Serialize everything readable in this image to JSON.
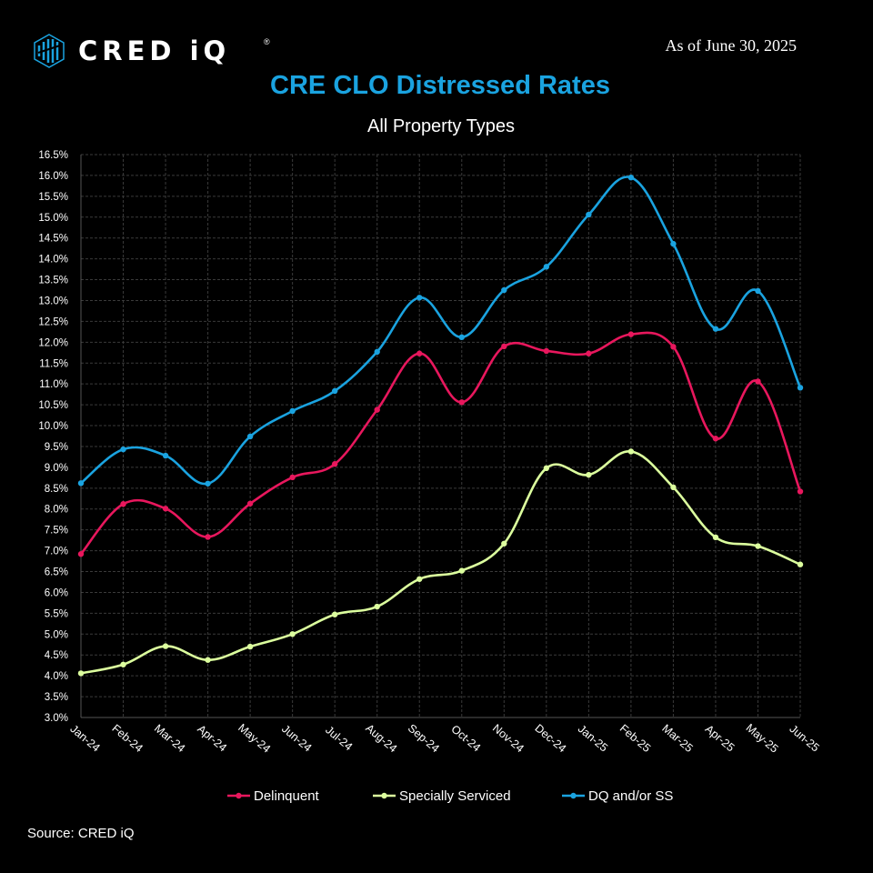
{
  "header": {
    "logo_text": "CRED iQ",
    "logo_registered": "®",
    "as_of": "As of June 30, 2025"
  },
  "footer": {
    "source": "Source:  CRED iQ"
  },
  "colors": {
    "background": "#000000",
    "title": "#1aa3e0",
    "grid": "#3a3a3a"
  },
  "chart_data": {
    "type": "line",
    "title": "CRE CLO Distressed Rates",
    "subtitle": "All Property Types",
    "xlabel": "",
    "ylabel": "",
    "ylim": [
      3.0,
      16.5
    ],
    "y_step": 0.5,
    "y_format": "percent_1dp",
    "grid": true,
    "legend_position": "bottom",
    "categories": [
      "Jan-24",
      "Feb-24",
      "Mar-24",
      "Apr-24",
      "May-24",
      "Jun-24",
      "Jul-24",
      "Aug-24",
      "Sep-24",
      "Oct-24",
      "Nov-24",
      "Dec-24",
      "Jan-25",
      "Feb-25",
      "Mar-25",
      "Apr-25",
      "May-25",
      "Jun-25"
    ],
    "series": [
      {
        "name": "Delinquent",
        "color": "#e8175d",
        "values": [
          6.92,
          8.12,
          8.01,
          7.33,
          8.13,
          8.76,
          9.08,
          10.38,
          11.73,
          10.56,
          11.9,
          11.79,
          11.73,
          12.19,
          11.89,
          9.69,
          11.06,
          8.42
        ]
      },
      {
        "name": "Specially Serviced",
        "color": "#dcff9e",
        "values": [
          4.06,
          4.27,
          4.71,
          4.38,
          4.7,
          5.0,
          5.47,
          5.66,
          6.32,
          6.52,
          7.17,
          8.98,
          8.82,
          9.38,
          8.52,
          7.32,
          7.11,
          6.67
        ]
      },
      {
        "name": "DQ and/or SS",
        "color": "#1aa3e0",
        "values": [
          8.62,
          9.43,
          9.28,
          8.61,
          9.74,
          10.35,
          10.83,
          11.77,
          13.07,
          12.12,
          13.25,
          13.81,
          15.06,
          15.95,
          14.36,
          12.32,
          13.23,
          10.91
        ]
      }
    ]
  }
}
